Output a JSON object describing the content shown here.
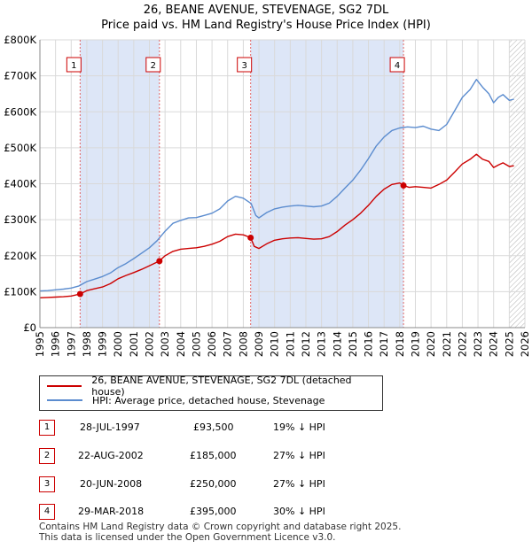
{
  "header": {
    "title": "26, BEANE AVENUE, STEVENAGE, SG2 7DL",
    "subtitle": "Price paid vs. HM Land Registry's House Price Index (HPI)"
  },
  "colors": {
    "property": "#cc0000",
    "hpi": "#5b8ccf",
    "shade": "#dde6f7",
    "grid": "#d9d9d9",
    "marker_line": "#e06666"
  },
  "chart_data": {
    "type": "line",
    "title": "26, BEANE AVENUE, STEVENAGE, SG2 7DL",
    "subtitle": "Price paid vs. HM Land Registry's House Price Index (HPI)",
    "xlim": [
      1995,
      2026
    ],
    "ylim": [
      0,
      800000
    ],
    "y_ticks": [
      0,
      100000,
      200000,
      300000,
      400000,
      500000,
      600000,
      700000,
      800000
    ],
    "y_tick_labels": [
      "£0",
      "£100K",
      "£200K",
      "£300K",
      "£400K",
      "£500K",
      "£600K",
      "£700K",
      "£800K"
    ],
    "x_ticks": [
      1995,
      1996,
      1997,
      1998,
      1999,
      2000,
      2001,
      2002,
      2003,
      2004,
      2005,
      2006,
      2007,
      2008,
      2009,
      2010,
      2011,
      2012,
      2013,
      2014,
      2015,
      2016,
      2017,
      2018,
      2019,
      2020,
      2021,
      2022,
      2023,
      2024,
      2025,
      2026
    ],
    "x_tick_labels": [
      "1995",
      "1996",
      "1997",
      "1998",
      "1999",
      "2000",
      "2001",
      "2002",
      "2003",
      "2004",
      "2005",
      "2006",
      "2007",
      "2008",
      "2009",
      "2010",
      "2011",
      "2012",
      "2013",
      "2014",
      "2015",
      "2016",
      "2017",
      "2018",
      "2019",
      "2020",
      "2021",
      "2022",
      "2023",
      "2024",
      "2025",
      "2026"
    ],
    "grid": true,
    "shaded_periods": [
      [
        1997.57,
        2002.64
      ],
      [
        2008.47,
        2018.24
      ]
    ],
    "hatched_from": 2025.0,
    "series": [
      {
        "name": "26, BEANE AVENUE, STEVENAGE, SG2 7DL (detached house)",
        "color": "#cc0000",
        "x": [
          1995.0,
          1995.5,
          1996.0,
          1996.5,
          1997.0,
          1997.57,
          1998.0,
          1998.5,
          1999.0,
          1999.5,
          2000.0,
          2000.5,
          2001.0,
          2001.5,
          2002.0,
          2002.64,
          2003.0,
          2003.5,
          2004.0,
          2004.5,
          2005.0,
          2005.5,
          2006.0,
          2006.5,
          2007.0,
          2007.5,
          2008.0,
          2008.47,
          2008.7,
          2009.0,
          2009.5,
          2010.0,
          2010.5,
          2011.0,
          2011.5,
          2012.0,
          2012.5,
          2013.0,
          2013.5,
          2014.0,
          2014.5,
          2015.0,
          2015.5,
          2016.0,
          2016.5,
          2017.0,
          2017.5,
          2018.0,
          2018.24,
          2018.6,
          2019.0,
          2019.5,
          2020.0,
          2020.5,
          2021.0,
          2021.5,
          2022.0,
          2022.5,
          2022.9,
          2023.3,
          2023.7,
          2024.0,
          2024.3,
          2024.6,
          2025.0,
          2025.3
        ],
        "values": [
          83000,
          84000,
          85000,
          86000,
          88000,
          93500,
          103000,
          108000,
          113000,
          122000,
          136000,
          145000,
          153000,
          162000,
          172000,
          185000,
          200000,
          212000,
          218000,
          220000,
          222000,
          226000,
          232000,
          240000,
          253000,
          260000,
          258000,
          250000,
          226000,
          220000,
          233000,
          243000,
          247000,
          249000,
          250000,
          248000,
          246000,
          247000,
          253000,
          267000,
          285000,
          300000,
          318000,
          340000,
          365000,
          385000,
          398000,
          402000,
          395000,
          390000,
          392000,
          390000,
          388000,
          398000,
          410000,
          432000,
          455000,
          468000,
          482000,
          468000,
          462000,
          445000,
          452000,
          458000,
          448000,
          450000
        ]
      },
      {
        "name": "HPI: Average price, detached house, Stevenage",
        "color": "#5b8ccf",
        "x": [
          1995.0,
          1995.5,
          1996.0,
          1996.5,
          1997.0,
          1997.5,
          1998.0,
          1998.5,
          1999.0,
          1999.5,
          2000.0,
          2000.5,
          2001.0,
          2001.5,
          2002.0,
          2002.5,
          2003.0,
          2003.5,
          2004.0,
          2004.5,
          2005.0,
          2005.5,
          2006.0,
          2006.5,
          2007.0,
          2007.5,
          2008.0,
          2008.5,
          2008.8,
          2009.0,
          2009.5,
          2010.0,
          2010.5,
          2011.0,
          2011.5,
          2012.0,
          2012.5,
          2013.0,
          2013.5,
          2014.0,
          2014.5,
          2015.0,
          2015.5,
          2016.0,
          2016.5,
          2017.0,
          2017.5,
          2018.0,
          2018.5,
          2019.0,
          2019.5,
          2020.0,
          2020.5,
          2021.0,
          2021.5,
          2022.0,
          2022.5,
          2022.9,
          2023.3,
          2023.7,
          2024.0,
          2024.3,
          2024.6,
          2025.0,
          2025.3
        ],
        "values": [
          102000,
          103000,
          105000,
          107000,
          110000,
          116000,
          128000,
          135000,
          142000,
          152000,
          167000,
          178000,
          192000,
          207000,
          222000,
          242000,
          268000,
          290000,
          298000,
          305000,
          306000,
          312000,
          318000,
          330000,
          352000,
          365000,
          360000,
          345000,
          312000,
          305000,
          320000,
          330000,
          335000,
          338000,
          340000,
          338000,
          336000,
          338000,
          346000,
          365000,
          388000,
          410000,
          438000,
          470000,
          505000,
          530000,
          548000,
          555000,
          558000,
          556000,
          560000,
          552000,
          548000,
          565000,
          602000,
          640000,
          662000,
          690000,
          668000,
          650000,
          625000,
          640000,
          648000,
          632000,
          635000
        ]
      }
    ],
    "sales": [
      {
        "label": "1",
        "x": 1997.57,
        "price": 93500
      },
      {
        "label": "2",
        "x": 2002.64,
        "price": 185000
      },
      {
        "label": "3",
        "x": 2008.47,
        "price": 250000
      },
      {
        "label": "4",
        "x": 2018.24,
        "price": 395000
      }
    ],
    "legend_position": "bottom"
  },
  "legend": {
    "property_label": "26, BEANE AVENUE, STEVENAGE, SG2 7DL (detached house)",
    "hpi_label": "HPI: Average price, detached house, Stevenage"
  },
  "sales_table": [
    {
      "num": "1",
      "date": "28-JUL-1997",
      "price": "£93,500",
      "hpi": "19% ↓ HPI"
    },
    {
      "num": "2",
      "date": "22-AUG-2002",
      "price": "£185,000",
      "hpi": "27% ↓ HPI"
    },
    {
      "num": "3",
      "date": "20-JUN-2008",
      "price": "£250,000",
      "hpi": "27% ↓ HPI"
    },
    {
      "num": "4",
      "date": "29-MAR-2018",
      "price": "£395,000",
      "hpi": "30% ↓ HPI"
    }
  ],
  "footer": {
    "line1": "Contains HM Land Registry data © Crown copyright and database right 2025.",
    "line2": "This data is licensed under the Open Government Licence v3.0."
  }
}
